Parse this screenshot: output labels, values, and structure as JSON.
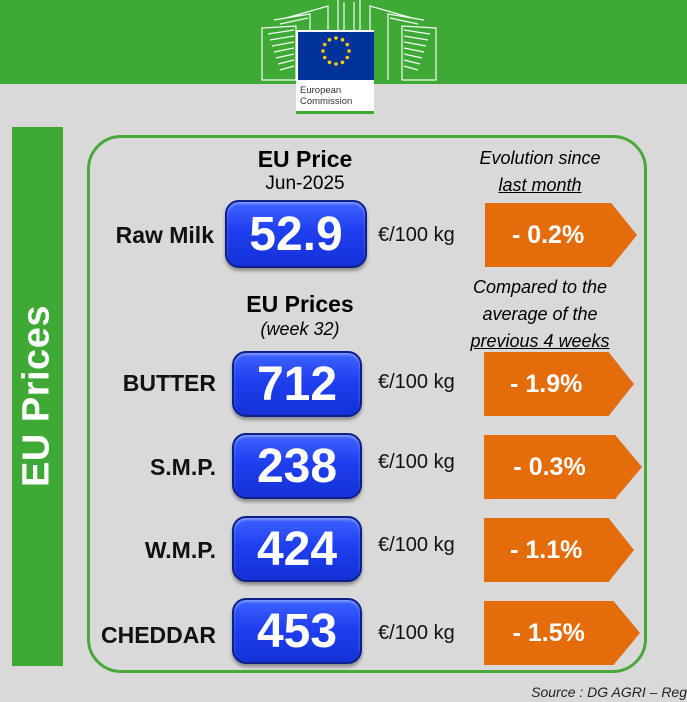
{
  "logo": {
    "line1": "European",
    "line2": "Commission"
  },
  "side_title": "EU Prices",
  "raw_milk": {
    "header_title": "EU Price",
    "header_period": "Jun-2025",
    "note_line1": "Evolution since",
    "note_line2": "last month",
    "label": "Raw Milk",
    "value": "52.9",
    "unit": "€/100 kg",
    "change": "- 0.2%"
  },
  "products_header": {
    "title": "EU Prices",
    "period": "(week 32)",
    "note_line1": "Compared to the",
    "note_line2": "average of the",
    "note_line3": "previous 4 weeks"
  },
  "products": [
    {
      "label": "BUTTER",
      "value": "712",
      "unit": "€/100 kg",
      "change": "- 1.9%"
    },
    {
      "label": "S.M.P.",
      "value": "238",
      "unit": "€/100 kg",
      "change": "- 0.3%"
    },
    {
      "label": "W.M.P.",
      "value": "424",
      "unit": "€/100 kg",
      "change": "- 1.1%"
    },
    {
      "label": "CHEDDAR",
      "value": "453",
      "unit": "€/100 kg",
      "change": "- 1.5%"
    }
  ],
  "source": "Source : DG AGRI – Reg",
  "colors": {
    "green": "#3eaa35",
    "blue": "#1f3ff0",
    "orange": "#e46c0a",
    "background": "#d9d9d9"
  }
}
